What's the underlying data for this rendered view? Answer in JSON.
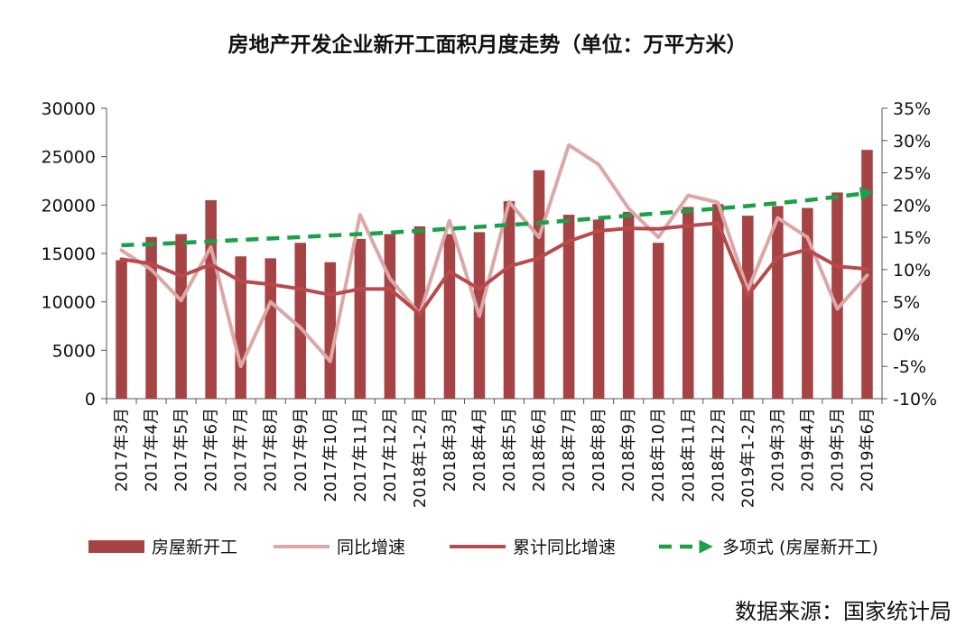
{
  "chart_data": {
    "type": "bar",
    "title": "房地产开发企业新开工面积月度走势（单位：万平方米）",
    "categories": [
      "2017年3月",
      "2017年4月",
      "2017年5月",
      "2017年6月",
      "2017年7月",
      "2017年8月",
      "2017年9月",
      "2017年10月",
      "2017年11月",
      "2017年12月",
      "2018年1-2月",
      "2018年3月",
      "2018年4月",
      "2018年5月",
      "2018年6月",
      "2018年7月",
      "2018年8月",
      "2018年9月",
      "2018年10月",
      "2018年11月",
      "2018年12月",
      "2019年1-2月",
      "2019年3月",
      "2019年4月",
      "2019年5月",
      "2019年6月"
    ],
    "y_left": {
      "min": 0,
      "max": 30000,
      "ticks": [
        "0",
        "5000",
        "10000",
        "15000",
        "20000",
        "25000",
        "30000"
      ],
      "tick_values": [
        0,
        5000,
        10000,
        15000,
        20000,
        25000,
        30000
      ]
    },
    "y_right": {
      "min": -10,
      "max": 35,
      "ticks": [
        "-10%",
        "-5%",
        "0%",
        "5%",
        "10%",
        "15%",
        "20%",
        "25%",
        "30%",
        "35%"
      ],
      "tick_values": [
        -10,
        -5,
        0,
        5,
        10,
        15,
        20,
        25,
        30,
        35
      ]
    },
    "series": [
      {
        "name": "房屋新开工",
        "type": "bar",
        "axis": "left",
        "color": "#A64445",
        "values": [
          14300,
          16700,
          17000,
          20500,
          14700,
          14500,
          16100,
          14100,
          16500,
          17000,
          17800,
          17000,
          17200,
          20400,
          23600,
          19000,
          18500,
          19300,
          16100,
          19800,
          20100,
          18900,
          19900,
          19700,
          21300,
          25700
        ]
      },
      {
        "name": "同比增速",
        "type": "line",
        "axis": "right",
        "color": "#DCA7A6",
        "values": [
          13.0,
          10.0,
          5.2,
          13.5,
          -5.0,
          5.0,
          1.0,
          -4.2,
          18.5,
          8.6,
          3.1,
          17.6,
          2.8,
          20.5,
          15.0,
          29.3,
          26.3,
          19.5,
          15.0,
          21.5,
          20.4,
          6.8,
          18.0,
          15.0,
          3.9,
          9.1
        ]
      },
      {
        "name": "累计同比增速",
        "type": "line",
        "axis": "right",
        "color": "#B94A4B",
        "values": [
          11.6,
          10.9,
          9.0,
          10.8,
          8.2,
          7.7,
          7.0,
          6.1,
          7.0,
          7.0,
          3.1,
          9.7,
          7.0,
          10.5,
          11.8,
          14.4,
          16.0,
          16.4,
          16.3,
          16.8,
          17.2,
          6.0,
          11.9,
          13.1,
          10.5,
          10.1
        ]
      },
      {
        "name": "多项式 (房屋新开工)",
        "type": "trendline",
        "axis": "left",
        "color": "#1AA048",
        "values": [
          15850,
          15950,
          16100,
          16250,
          16400,
          16550,
          16700,
          16850,
          17000,
          17150,
          17350,
          17550,
          17750,
          17950,
          18150,
          18400,
          18650,
          18900,
          19150,
          19400,
          19650,
          19900,
          20200,
          20500,
          20850,
          21250
        ]
      }
    ],
    "legend_position": "bottom",
    "source": "数据来源：国家统计局"
  }
}
